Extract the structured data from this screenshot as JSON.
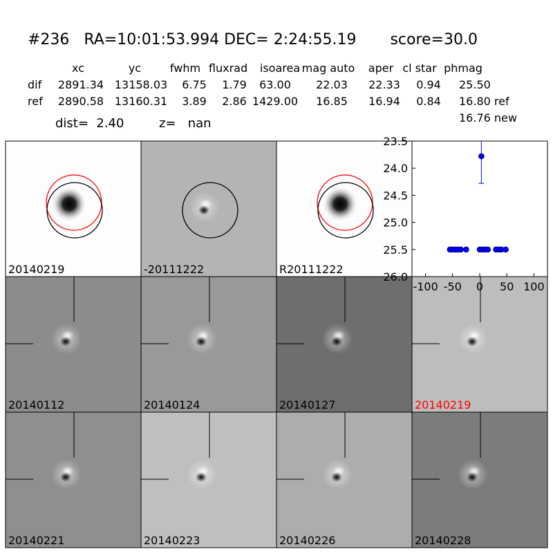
{
  "header": {
    "title": "#236   RA=10:01:53.994 DEC= 2:24:55.19       score=30.0",
    "dist": "dist=  2.40",
    "z": "z=   nan",
    "note": "16.76 new"
  },
  "table": {
    "columns": [
      "xc",
      "yc",
      "fwhm",
      "fluxrad",
      "isoarea",
      "mag auto",
      "aper",
      "cl star",
      "phmag"
    ],
    "rows": [
      [
        "dif",
        "2891.34",
        "13158.03",
        "6.75",
        "1.79",
        "63.00",
        "22.03",
        "22.33",
        "0.94",
        "25.50"
      ],
      [
        "ref",
        "2890.58",
        "13160.31",
        "3.89",
        "2.86",
        "1429.00",
        "16.85",
        "16.94",
        "0.84",
        "16.80 ref"
      ]
    ]
  },
  "panels": [
    {
      "label": "20140219",
      "color": "#000000"
    },
    {
      "label": "-20111222",
      "color": "#000000"
    },
    {
      "label": "R20111222",
      "color": "#000000"
    },
    {
      "label": "20140112",
      "color": "#000000"
    },
    {
      "label": "20140124",
      "color": "#000000"
    },
    {
      "label": "20140127",
      "color": "#000000"
    },
    {
      "label": "20140219",
      "color": "#ff0000"
    },
    {
      "label": "20140221",
      "color": "#000000"
    },
    {
      "label": "20140223",
      "color": "#000000"
    },
    {
      "label": "20140226",
      "color": "#000000"
    },
    {
      "label": "20140228",
      "color": "#000000"
    }
  ],
  "chart_data": {
    "type": "scatter",
    "color": "#0000ff",
    "x": [
      -55,
      -50,
      -45,
      -40,
      -35,
      -25,
      0,
      5,
      10,
      15,
      30,
      35,
      40,
      48,
      3
    ],
    "values": [
      25.5,
      25.5,
      25.5,
      25.5,
      25.5,
      25.5,
      25.5,
      25.5,
      25.5,
      25.5,
      25.5,
      25.5,
      25.5,
      25.5,
      23.78
    ],
    "errors": [
      null,
      null,
      null,
      null,
      null,
      null,
      null,
      null,
      null,
      null,
      null,
      null,
      null,
      null,
      0.5
    ],
    "xlim": [
      -125,
      125
    ],
    "xticks": [
      -100,
      -50,
      0,
      50,
      100
    ],
    "ylim": [
      23.5,
      26.0
    ],
    "invert_y": true,
    "yticks": [
      23.5,
      {
        "value": 24.0,
        "label": "24.0"
      },
      24.5,
      {
        "value": 25.0,
        "label": "25.0"
      },
      25.5,
      {
        "value": 26.0,
        "label": "26.0"
      }
    ]
  }
}
